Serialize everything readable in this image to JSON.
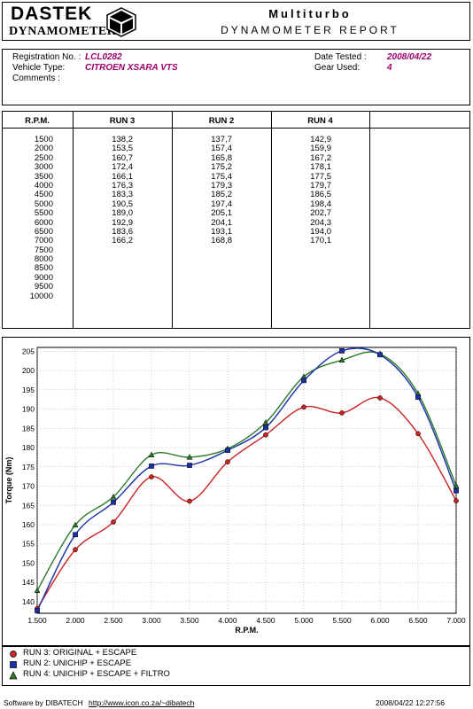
{
  "header": {
    "logo_line1": "DASTEK",
    "logo_line2": "DYNAMOMETERS",
    "title": "Multiturbo",
    "subtitle": "DYNAMOMETER REPORT"
  },
  "info": {
    "registration_label": "Registration No. :",
    "registration_value": "LCL0282",
    "vehicle_label": "Vehicle Type:",
    "vehicle_value": "CITROEN XSARA VTS",
    "comments_label": "Comments :",
    "date_label": "Date Tested :",
    "date_value": "2008/04/22",
    "gear_label": "Gear Used:",
    "gear_value": "4"
  },
  "table": {
    "headers": [
      "R.P.M.",
      "RUN 3",
      "RUN 2",
      "RUN 4"
    ],
    "rpm": [
      "1500",
      "2000",
      "2500",
      "3000",
      "3500",
      "4000",
      "4500",
      "5000",
      "5500",
      "6000",
      "6500",
      "7000",
      "7500",
      "8000",
      "8500",
      "9000",
      "9500",
      "10000"
    ],
    "run3": [
      "138,2",
      "153,5",
      "160,7",
      "172,4",
      "166,1",
      "176,3",
      "183,3",
      "190,5",
      "189,0",
      "192,9",
      "183,6",
      "166,2"
    ],
    "run2": [
      "137,7",
      "157,4",
      "165,8",
      "175,2",
      "175,4",
      "179,3",
      "185,2",
      "197,4",
      "205,1",
      "204,1",
      "193,1",
      "168,8"
    ],
    "run4": [
      "142,9",
      "159,9",
      "167,2",
      "178,1",
      "177,5",
      "179,7",
      "186,5",
      "198,4",
      "202,7",
      "204,3",
      "194,0",
      "170,1"
    ]
  },
  "chart_data": {
    "type": "line",
    "xlabel": "R.P.M.",
    "ylabel": "Torque (Nm)",
    "x": [
      1500,
      2000,
      2500,
      3000,
      3500,
      4000,
      4500,
      5000,
      5500,
      6000,
      6500,
      7000
    ],
    "x_tick_labels": [
      "1.500",
      "2.000",
      "2.500",
      "3.000",
      "3.500",
      "4.000",
      "4.500",
      "5.000",
      "5.500",
      "6.000",
      "6.500",
      "7.000"
    ],
    "y_ticks": [
      140,
      145,
      150,
      155,
      160,
      165,
      170,
      175,
      180,
      185,
      190,
      195,
      200,
      205
    ],
    "xlim": [
      1500,
      7000
    ],
    "ylim": [
      137,
      206
    ],
    "grid": true,
    "series": [
      {
        "name": "RUN 3: ORIGINAL + ESCAPE",
        "color": "#cc2222",
        "marker": "circle",
        "values": [
          138.2,
          153.5,
          160.7,
          172.4,
          166.1,
          176.3,
          183.3,
          190.5,
          189.0,
          192.9,
          183.6,
          166.2
        ]
      },
      {
        "name": "RUN 2: UNICHIP + ESCAPE",
        "color": "#1a2fa8",
        "marker": "square",
        "values": [
          137.7,
          157.4,
          165.8,
          175.2,
          175.4,
          179.3,
          185.2,
          197.4,
          205.1,
          204.1,
          193.1,
          168.8
        ]
      },
      {
        "name": "RUN 4: UNICHIP + ESCAPE + FILTRO",
        "color": "#2a7a2a",
        "marker": "triangle",
        "values": [
          142.9,
          159.9,
          167.2,
          178.1,
          177.5,
          179.7,
          186.5,
          198.4,
          202.7,
          204.3,
          194.0,
          170.1
        ]
      }
    ]
  },
  "footer": {
    "software": "Software by DIBATECH",
    "url": "http://www.icon.co.za/~dibatech",
    "timestamp": "2008/04/22 12:27:56"
  }
}
